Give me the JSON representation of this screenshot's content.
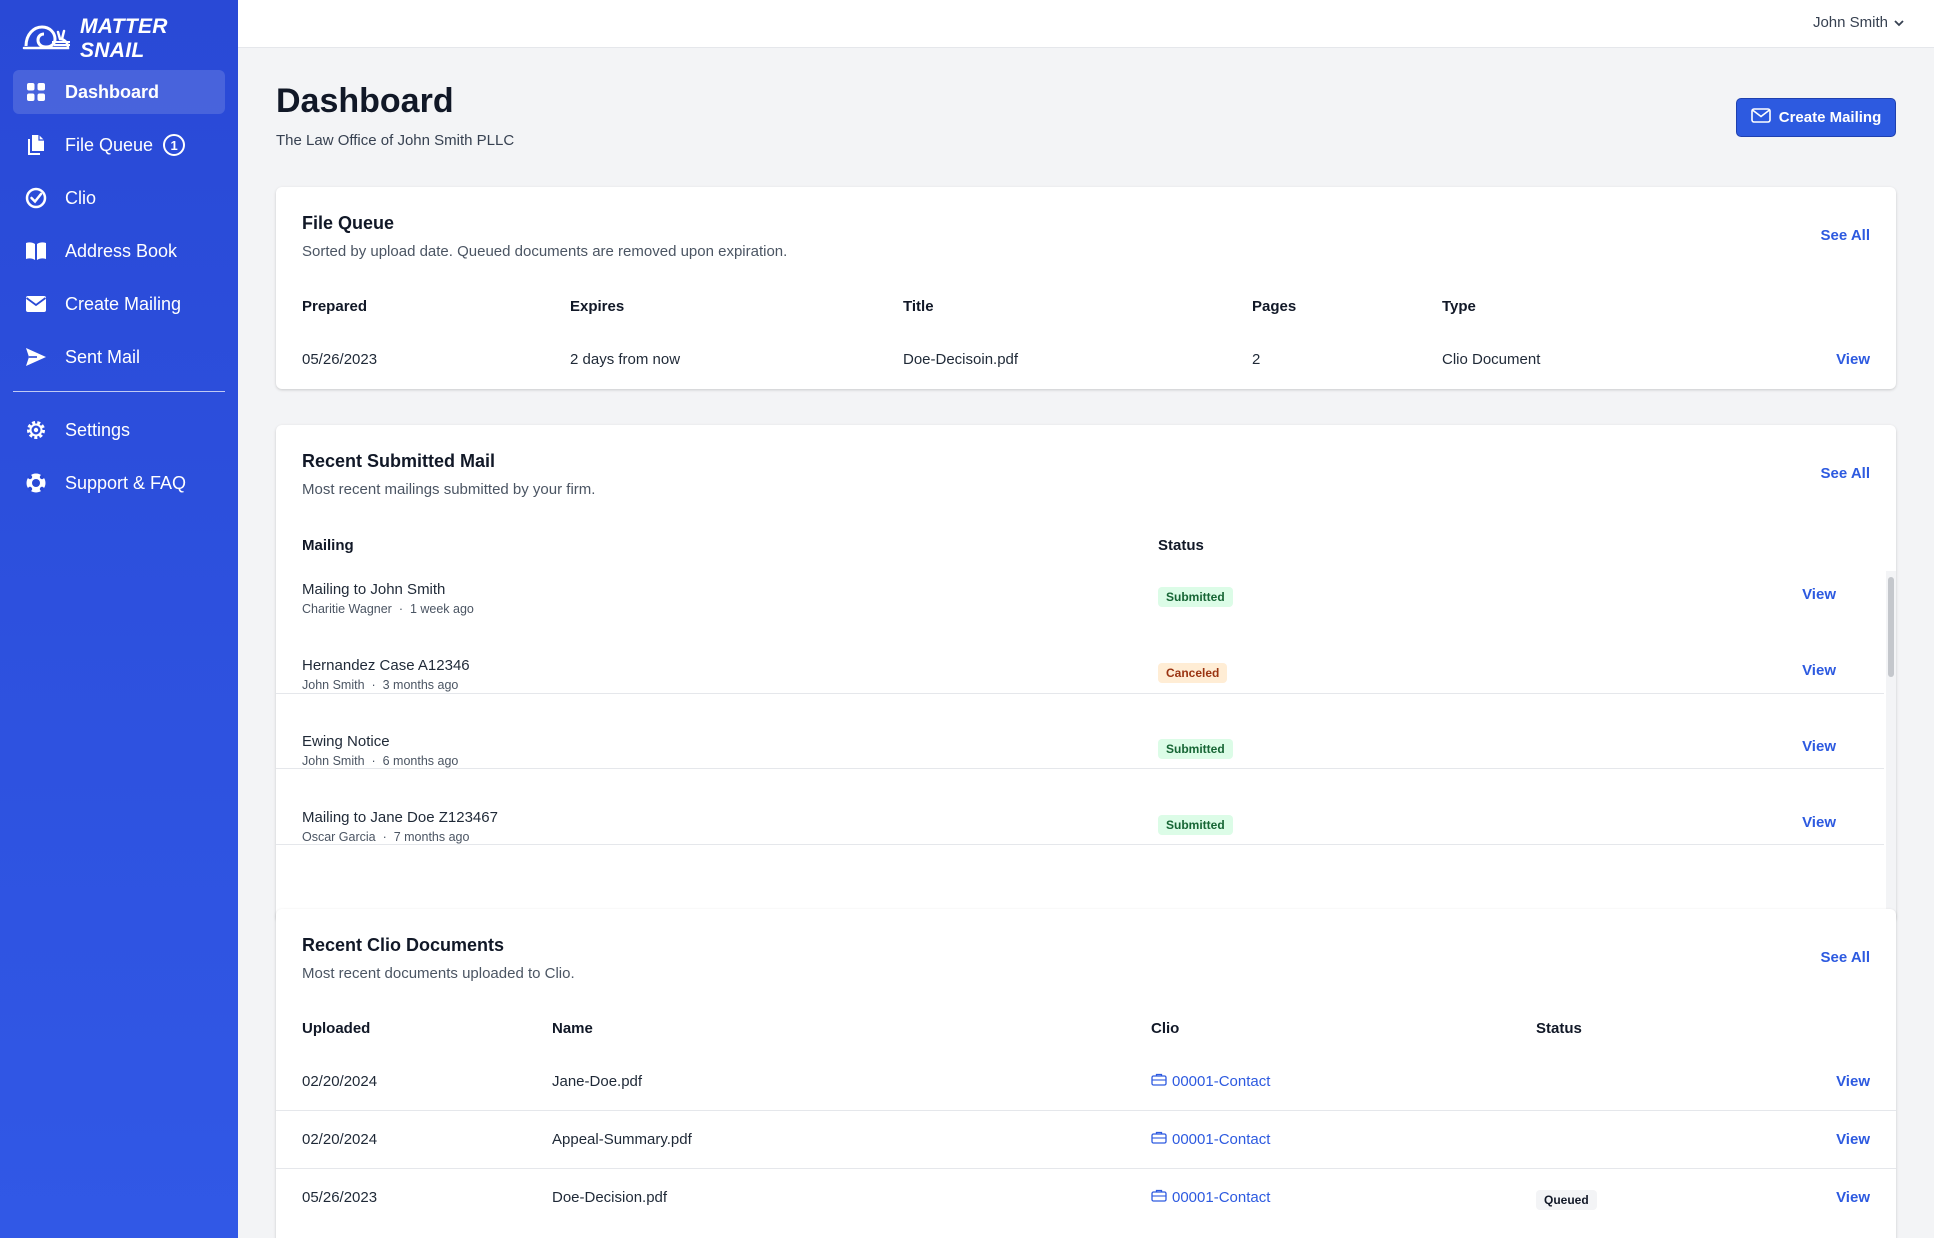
{
  "app": {
    "brand": "MATTER SNAIL"
  },
  "sidebar": {
    "items": [
      {
        "label": "Dashboard",
        "icon": "grid-icon"
      },
      {
        "label": "File Queue",
        "icon": "documents-icon",
        "badge": "1"
      },
      {
        "label": "Clio",
        "icon": "check-circle-icon"
      },
      {
        "label": "Address Book",
        "icon": "book-open-icon"
      },
      {
        "label": "Create Mailing",
        "icon": "envelope-icon"
      },
      {
        "label": "Sent Mail",
        "icon": "paper-airplane-icon"
      }
    ],
    "secondary": [
      {
        "label": "Settings",
        "icon": "gear-icon"
      },
      {
        "label": "Support & FAQ",
        "icon": "lifebuoy-icon"
      }
    ]
  },
  "header": {
    "user": "John Smith"
  },
  "page": {
    "title": "Dashboard",
    "subtitle": "The Law Office of John Smith PLLC",
    "create_button": "Create Mailing"
  },
  "file_queue": {
    "title": "File Queue",
    "description": "Sorted by upload date. Queued documents are removed upon expiration.",
    "see_all": "See All",
    "columns": [
      "Prepared",
      "Expires",
      "Title",
      "Pages",
      "Type"
    ],
    "rows": [
      {
        "prepared": "05/26/2023",
        "expires": "2 days from now",
        "title": "Doe-Decisoin.pdf",
        "pages": "2",
        "type": "Clio Document",
        "action": "View"
      }
    ]
  },
  "recent_mail": {
    "title": "Recent Submitted Mail",
    "description": "Most recent mailings submitted by your firm.",
    "see_all": "See All",
    "columns": [
      "Mailing",
      "Status"
    ],
    "rows": [
      {
        "title": "Mailing to John Smith",
        "author": "Charitie Wagner",
        "time": "1 week ago",
        "status": "Submitted",
        "action": "View"
      },
      {
        "title": "Hernandez Case A12346",
        "author": "John Smith",
        "time": "3 months ago",
        "status": "Canceled",
        "action": "View"
      },
      {
        "title": "Ewing Notice",
        "author": "John Smith",
        "time": "6 months ago",
        "status": "Submitted",
        "action": "View"
      },
      {
        "title": "Mailing to Jane Doe Z123467",
        "author": "Oscar Garcia",
        "time": "7 months ago",
        "status": "Submitted",
        "action": "View"
      }
    ],
    "separator": "·"
  },
  "clio_docs": {
    "title": "Recent Clio Documents",
    "description": "Most recent documents uploaded to Clio.",
    "see_all": "See All",
    "columns": [
      "Uploaded",
      "Name",
      "Clio",
      "Status"
    ],
    "rows": [
      {
        "uploaded": "02/20/2024",
        "name": "Jane-Doe.pdf",
        "clio": "00001-Contact",
        "status": "",
        "action": "View"
      },
      {
        "uploaded": "02/20/2024",
        "name": "Appeal-Summary.pdf",
        "clio": "00001-Contact",
        "status": "",
        "action": "View"
      },
      {
        "uploaded": "05/26/2023",
        "name": "Doe-Decision.pdf",
        "clio": "00001-Contact",
        "status": "Queued",
        "action": "View"
      }
    ]
  },
  "colors": {
    "sidebar": "#2949d6",
    "accent": "#2d5ae0",
    "success": "#166534",
    "warning": "#9a3412"
  }
}
